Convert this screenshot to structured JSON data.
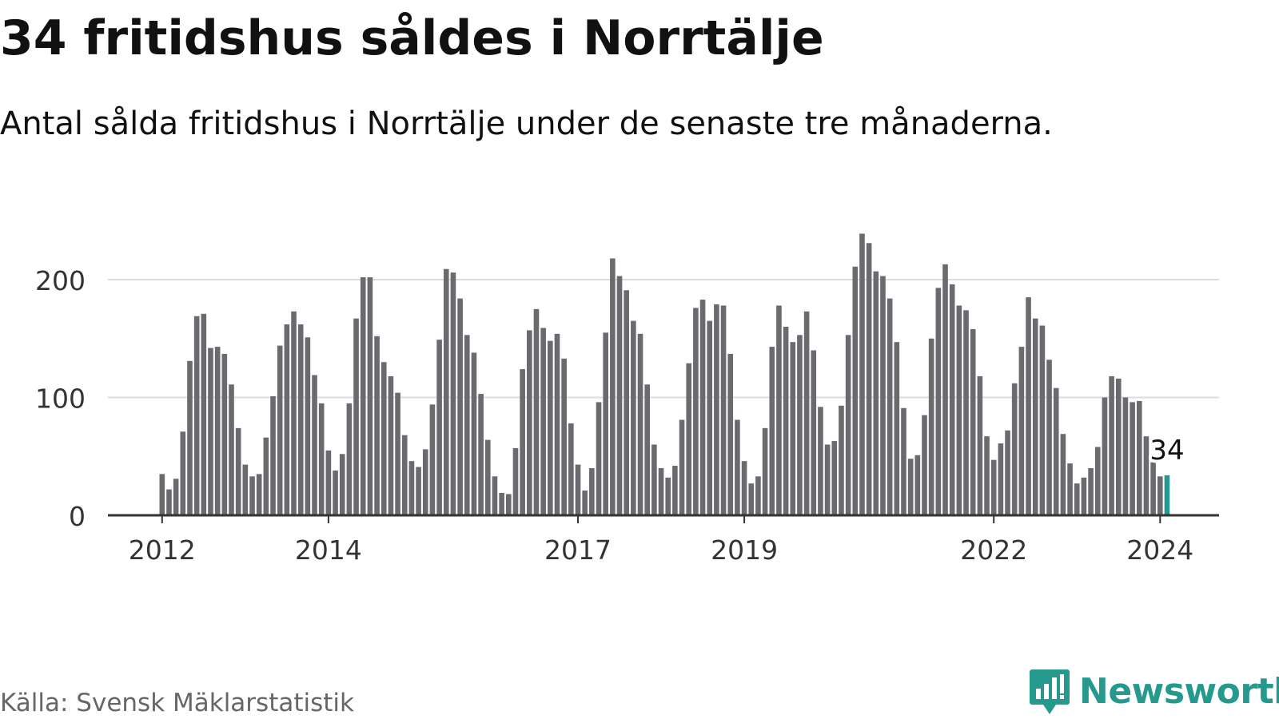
{
  "title": "34 fritidshus såldes i Norrtälje",
  "subtitle": "Antal sålda fritidshus i Norrtälje under de senaste tre månaderna.",
  "source": "Källa: Svensk Mäklarstatistik",
  "brand": {
    "name": "Newsworthy",
    "icon": "bar-chart-speech-bubble-icon",
    "color": "#26998f"
  },
  "colors": {
    "bar": "#6b6a6f",
    "highlight": "#26998f",
    "grid": "#dcdcdc",
    "axis": "#333333"
  },
  "chart_data": {
    "type": "bar",
    "title": "34 fritidshus såldes i Norrtälje",
    "subtitle": "Antal sålda fritidshus i Norrtälje under de senaste tre månaderna.",
    "xlabel": "",
    "ylabel": "",
    "ylim": [
      0,
      245
    ],
    "yticks": [
      0,
      100,
      200
    ],
    "xtick_labels": [
      "2012",
      "2014",
      "2017",
      "2019",
      "2022",
      "2024"
    ],
    "grid": "horizontal",
    "highlight": {
      "label": "34",
      "value": 34
    },
    "values": [
      35,
      22,
      31,
      71,
      131,
      169,
      171,
      142,
      143,
      137,
      111,
      74,
      43,
      33,
      35,
      66,
      101,
      144,
      162,
      173,
      162,
      151,
      119,
      95,
      55,
      38,
      52,
      95,
      167,
      202,
      202,
      152,
      130,
      118,
      104,
      68,
      46,
      41,
      56,
      94,
      149,
      209,
      206,
      184,
      153,
      138,
      103,
      64,
      33,
      19,
      18,
      57,
      124,
      157,
      175,
      159,
      148,
      154,
      133,
      78,
      43,
      21,
      40,
      96,
      155,
      218,
      203,
      191,
      165,
      154,
      111,
      60,
      40,
      32,
      42,
      81,
      129,
      176,
      183,
      165,
      179,
      178,
      137,
      81,
      46,
      27,
      33,
      74,
      143,
      178,
      160,
      147,
      153,
      173,
      140,
      92,
      60,
      63,
      93,
      153,
      211,
      239,
      231,
      207,
      203,
      184,
      147,
      91,
      48,
      51,
      85,
      150,
      193,
      213,
      196,
      178,
      174,
      158,
      118,
      67,
      47,
      61,
      72,
      112,
      143,
      185,
      167,
      161,
      132,
      108,
      69,
      44,
      27,
      32,
      40,
      58,
      100,
      118,
      116,
      100,
      96,
      97,
      67,
      45,
      33,
      34
    ]
  }
}
